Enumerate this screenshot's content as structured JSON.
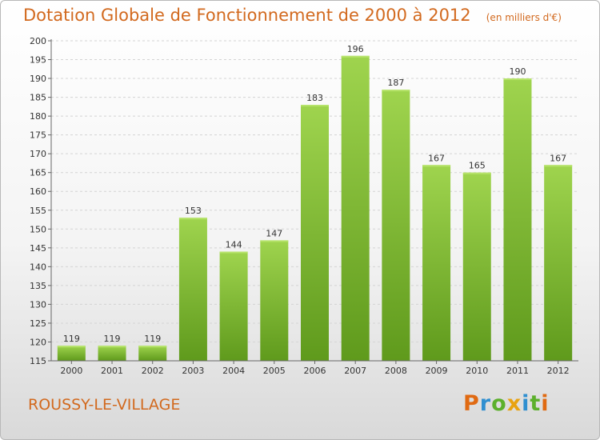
{
  "header": {
    "title": "Dotation Globale de Fonctionnement de 2000 à 2012",
    "subtitle": "(en milliers d'€)"
  },
  "footer": {
    "place": "ROUSSY-LE-VILLAGE",
    "logo": "Proxiti",
    "logo_colors": [
      "#e06a12",
      "#2f8fd0",
      "#5cb02c",
      "#e8a312",
      "#2f8fd0",
      "#5cb02c",
      "#e06a12"
    ]
  },
  "chart_data": {
    "type": "bar",
    "title": "Dotation Globale de Fonctionnement de 2000 à 2012",
    "subtitle": "(en milliers d'€)",
    "xlabel": "",
    "ylabel": "",
    "categories": [
      "2000",
      "2001",
      "2002",
      "2003",
      "2004",
      "2005",
      "2006",
      "2007",
      "2008",
      "2009",
      "2010",
      "2011",
      "2012"
    ],
    "values": [
      119,
      119,
      119,
      153,
      144,
      147,
      183,
      196,
      187,
      167,
      165,
      190,
      167
    ],
    "ylim": [
      115,
      200
    ],
    "yticks": [
      115,
      120,
      125,
      130,
      135,
      140,
      145,
      150,
      155,
      160,
      165,
      170,
      175,
      180,
      185,
      190,
      195,
      200
    ],
    "grid": true,
    "bar_color": "#7cb82f",
    "bar_color_light": "#9fd44e",
    "bar_color_dark": "#5f9a1c"
  }
}
